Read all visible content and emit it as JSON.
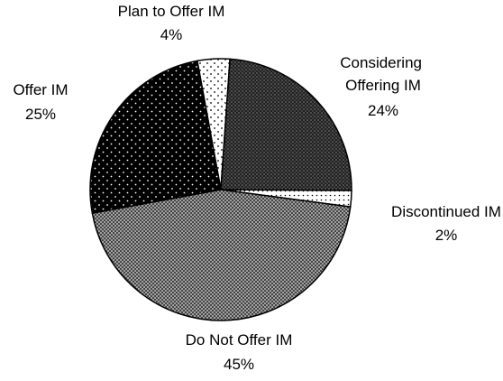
{
  "chart_data": {
    "type": "pie",
    "categories": [
      "Plan to Offer IM",
      "Considering Offering IM",
      "Discontinued IM",
      "Do Not Offer IM",
      "Offer IM"
    ],
    "values": [
      4,
      24,
      2,
      45,
      25
    ],
    "value_labels": [
      "4%",
      "24%",
      "2%",
      "45%",
      "25%"
    ]
  }
}
